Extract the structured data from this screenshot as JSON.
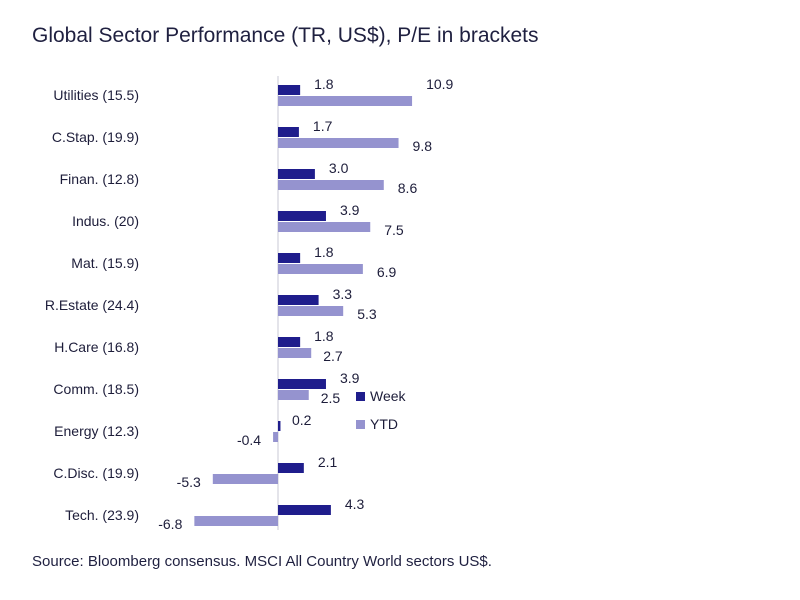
{
  "chart_data": {
    "type": "bar",
    "orientation": "horizontal",
    "title": "Global Sector Performance (TR, US$), P/E in brackets",
    "categories": [
      "Utilities (15.5)",
      "C.Stap. (19.9)",
      "Finan. (12.8)",
      "Indus. (20)",
      "Mat. (15.9)",
      "R.Estate (24.4)",
      "H.Care (16.8)",
      "Comm. (18.5)",
      "Energy (12.3)",
      "C.Disc. (19.9)",
      "Tech. (23.9)"
    ],
    "series": [
      {
        "name": "Week",
        "color": "#1f1d8c",
        "values": [
          1.8,
          1.7,
          3.0,
          3.9,
          1.8,
          3.3,
          1.8,
          3.9,
          0.2,
          2.1,
          4.3
        ],
        "labels": [
          "1.8",
          "1.7",
          "3.0",
          "3.9",
          "1.8",
          "3.3",
          "1.8",
          "3.9",
          "0.2",
          "2.1",
          "4.3"
        ]
      },
      {
        "name": "YTD",
        "color": "#9593cf",
        "values": [
          10.9,
          9.8,
          8.6,
          7.5,
          6.9,
          5.3,
          2.7,
          2.5,
          -0.4,
          -5.3,
          -6.8
        ],
        "labels": [
          "10.9",
          "9.8",
          "8.6",
          "7.5",
          "6.9",
          "5.3",
          "2.7",
          "2.5",
          "-0.4",
          "-5.3",
          "-6.8"
        ]
      }
    ],
    "legend": {
      "position": "inside-right",
      "entries": [
        "Week",
        "YTD"
      ]
    },
    "xlim": [
      -7,
      12
    ],
    "grid": false,
    "source": "Source: Bloomberg consensus. MSCI All Country World sectors US$."
  }
}
